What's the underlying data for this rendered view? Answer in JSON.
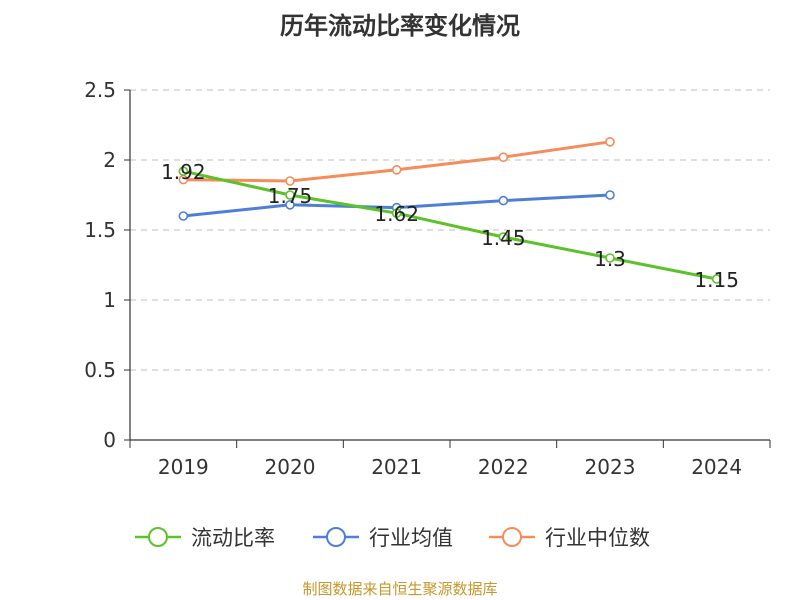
{
  "chart_data": {
    "type": "line",
    "title": "历年流动比率变化情况",
    "categories": [
      "2019",
      "2020",
      "2021",
      "2022",
      "2023",
      "2024"
    ],
    "ylim": [
      0,
      2.5
    ],
    "yticks": [
      "0",
      "0.5",
      "1",
      "1.5",
      "2",
      "2.5"
    ],
    "grid": true,
    "legend_position": "bottom",
    "series": [
      {
        "name": "流动比率",
        "color": "#5cc22a",
        "values": [
          1.92,
          1.75,
          1.62,
          1.45,
          1.3,
          1.15
        ],
        "labels": [
          "1.92",
          "1.75",
          "1.62",
          "1.45",
          "1.3",
          "1.15"
        ]
      },
      {
        "name": "行业均值",
        "color": "#4d7fd9",
        "values": [
          1.6,
          1.68,
          1.66,
          1.71,
          1.75,
          null
        ]
      },
      {
        "name": "行业中位数",
        "color": "#f48c5b",
        "values": [
          1.86,
          1.85,
          1.93,
          2.02,
          2.13,
          null
        ]
      }
    ],
    "source": "制图数据来自恒生聚源数据库"
  }
}
